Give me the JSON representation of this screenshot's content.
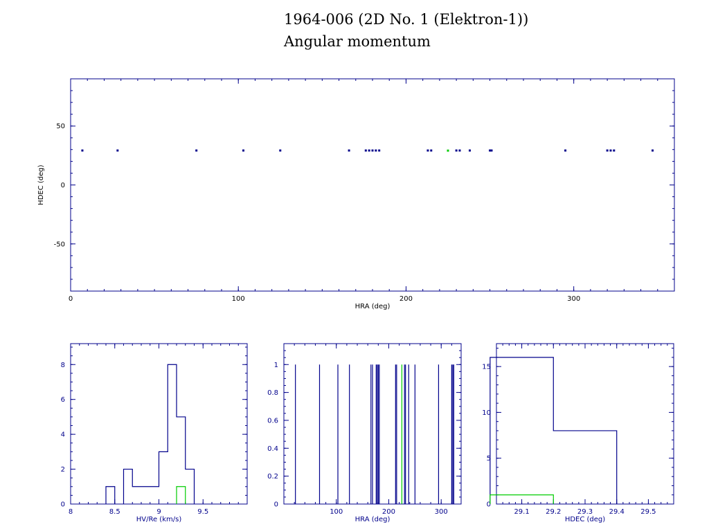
{
  "title_line1": "1964-006 (2D No. 1 (Elektron-1))",
  "title_line2": "Angular momentum",
  "colors": {
    "main": "#00008b",
    "highlight": "#00cc00",
    "text": "#000000"
  },
  "chart_data": [
    {
      "type": "scatter",
      "xlabel": "HRA (deg)",
      "ylabel": "HDEC (deg)",
      "xlim": [
        0,
        360
      ],
      "ylim": [
        -90,
        90
      ],
      "xticks": [
        0,
        100,
        200,
        300
      ],
      "yticks": [
        -50,
        0,
        50
      ],
      "series": [
        {
          "color": "#00008b",
          "x": [
            7,
            28,
            75,
            103,
            125,
            166,
            176,
            178,
            180,
            182,
            184,
            213,
            215,
            230,
            232,
            238,
            250,
            251,
            295,
            320,
            322,
            324,
            347
          ],
          "y": [
            29.2,
            29.2,
            29.2,
            29.2,
            29.2,
            29.2,
            29.2,
            29.2,
            29.2,
            29.2,
            29.2,
            29.2,
            29.2,
            29.2,
            29.2,
            29.2,
            29.2,
            29.2,
            29.2,
            29.2,
            29.2,
            29.2,
            29.2
          ]
        },
        {
          "color": "#00cc00",
          "x": [
            225
          ],
          "y": [
            29.1
          ]
        }
      ]
    },
    {
      "type": "histogram",
      "xlabel": "HV/Re (km/s)",
      "ylabel": "",
      "xlim": [
        8,
        10
      ],
      "ylim": [
        0,
        9.2
      ],
      "xticks": [
        8,
        8.5,
        9,
        9.5
      ],
      "xtick_labels": [
        "8",
        "8.5",
        "9",
        "9.5"
      ],
      "yticks": [
        0,
        2,
        4,
        6,
        8
      ],
      "series": [
        {
          "color": "#00008b",
          "bins": [
            [
              8.4,
              8.5,
              1
            ],
            [
              8.6,
              8.7,
              2
            ],
            [
              8.7,
              9.0,
              1
            ],
            [
              9.0,
              9.1,
              3
            ],
            [
              9.1,
              9.2,
              8
            ],
            [
              9.2,
              9.3,
              5
            ],
            [
              9.3,
              9.4,
              2
            ]
          ]
        },
        {
          "color": "#00cc00",
          "bins": [
            [
              9.2,
              9.3,
              1
            ]
          ]
        }
      ]
    },
    {
      "type": "bar",
      "xlabel": "HRA (deg)",
      "ylabel": "",
      "xlim": [
        0,
        338
      ],
      "ylim": [
        0,
        1.15
      ],
      "xticks": [
        100,
        200,
        300
      ],
      "yticks": [
        0,
        0.2,
        0.4,
        0.6,
        0.8,
        1
      ],
      "ytick_labels": [
        "0",
        "0.2",
        "0.4",
        "0.6",
        "0.8",
        "1"
      ],
      "series": [
        {
          "color": "#00008b",
          "x": [
            22,
            68,
            103,
            125,
            166,
            169,
            176,
            178,
            180,
            182,
            213,
            215,
            230,
            232,
            238,
            250,
            295,
            320,
            322,
            324
          ],
          "values": [
            1,
            1,
            1,
            1,
            1,
            1,
            1,
            1,
            1,
            1,
            1,
            1,
            1,
            1,
            1,
            1,
            1,
            1,
            1,
            1
          ]
        },
        {
          "color": "#00cc00",
          "x": [
            225
          ],
          "values": [
            1
          ]
        }
      ]
    },
    {
      "type": "histogram",
      "xlabel": "HDEC (deg)",
      "ylabel": "",
      "xlim": [
        29.02,
        29.58
      ],
      "ylim": [
        0,
        17.5
      ],
      "xticks": [
        29.1,
        29.2,
        29.3,
        29.4,
        29.5
      ],
      "xtick_labels": [
        "29.1",
        "29.2",
        "29.3",
        "29.4",
        "29.5"
      ],
      "yticks": [
        0,
        5,
        10,
        15
      ],
      "series": [
        {
          "color": "#00008b",
          "bins": [
            [
              29.0,
              29.2,
              16
            ],
            [
              29.2,
              29.4,
              8
            ]
          ]
        },
        {
          "color": "#00cc00",
          "bins": [
            [
              29.0,
              29.2,
              1
            ]
          ]
        }
      ]
    }
  ]
}
